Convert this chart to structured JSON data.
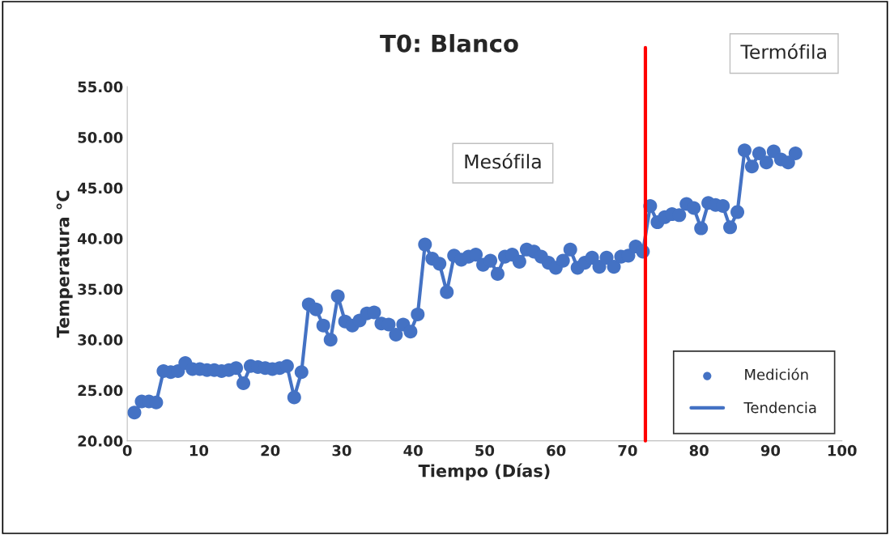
{
  "chart_data": {
    "type": "line",
    "title": "T0: Blanco",
    "xlabel": "Tiempo (Días)",
    "ylabel": "Temperatura °C",
    "x": [
      1,
      2.02,
      3.03,
      4.05,
      5.07,
      6.08,
      7.1,
      8.12,
      9.13,
      10.15,
      11.16,
      12.18,
      13.2,
      14.21,
      15.23,
      16.25,
      17.26,
      18.28,
      19.3,
      20.31,
      21.33,
      22.35,
      23.36,
      24.38,
      25.4,
      26.41,
      27.43,
      28.45,
      29.46,
      30.48,
      31.49,
      32.51,
      33.53,
      34.54,
      35.56,
      36.58,
      37.59,
      38.61,
      39.63,
      40.64,
      41.66,
      42.68,
      43.69,
      44.71,
      45.73,
      46.74,
      47.76,
      48.77,
      49.79,
      50.81,
      51.82,
      52.84,
      53.86,
      54.87,
      55.89,
      56.91,
      57.92,
      58.94,
      59.96,
      60.97,
      61.99,
      63.01,
      64.02,
      65.04,
      66.05,
      67.07,
      68.09,
      69.1,
      70.12,
      71.14,
      72.15,
      73.17,
      74.19,
      75.2,
      76.22,
      77.24,
      78.25,
      79.27,
      80.29,
      81.3,
      82.32,
      83.34,
      84.35,
      85.37,
      86.38,
      87.4,
      88.42,
      89.43,
      90.45,
      91.47,
      92.48,
      93.5
    ],
    "series": [
      {
        "name": "Medición",
        "type": "scatter",
        "color": "#4472c4",
        "marker": "circle",
        "values": [
          22.8,
          23.9,
          23.9,
          23.8,
          26.9,
          26.8,
          26.9,
          27.7,
          27.1,
          27.1,
          27.0,
          27.0,
          26.9,
          27.0,
          27.2,
          25.7,
          27.4,
          27.3,
          27.2,
          27.1,
          27.2,
          27.4,
          24.3,
          26.8,
          33.5,
          33.0,
          31.4,
          30.0,
          34.3,
          31.8,
          31.4,
          31.9,
          32.6,
          32.7,
          31.6,
          31.5,
          30.5,
          31.5,
          30.8,
          32.5,
          39.4,
          38.0,
          37.5,
          34.7,
          38.3,
          37.9,
          38.2,
          38.4,
          37.4,
          37.8,
          36.5,
          38.2,
          38.4,
          37.7,
          38.9,
          38.7,
          38.2,
          37.6,
          37.1,
          37.8,
          38.9,
          37.1,
          37.6,
          38.1,
          37.2,
          38.1,
          37.2,
          38.2,
          38.3,
          39.2,
          38.7,
          43.2,
          41.6,
          42.1,
          42.4,
          42.3,
          43.4,
          43.0,
          41.0,
          43.5,
          43.3,
          43.2,
          41.1,
          42.6,
          48.7,
          47.1,
          48.4,
          47.5,
          48.6,
          47.8,
          47.5,
          48.4
        ]
      },
      {
        "name": "Tendencia",
        "color": "#4472c4",
        "line_style": "solid",
        "values": [
          22.8,
          23.9,
          23.9,
          23.8,
          26.9,
          26.8,
          26.9,
          27.7,
          27.1,
          27.1,
          27.0,
          27.0,
          26.9,
          27.0,
          27.2,
          25.7,
          27.4,
          27.3,
          27.2,
          27.1,
          27.2,
          27.4,
          24.3,
          26.8,
          33.5,
          33.0,
          31.4,
          30.0,
          34.3,
          31.8,
          31.4,
          31.9,
          32.6,
          32.7,
          31.6,
          31.5,
          30.5,
          31.5,
          30.8,
          32.5,
          39.4,
          38.0,
          37.5,
          34.7,
          38.3,
          37.9,
          38.2,
          38.4,
          37.4,
          37.8,
          36.5,
          38.2,
          38.4,
          37.7,
          38.9,
          38.7,
          38.2,
          37.6,
          37.1,
          37.8,
          38.9,
          37.1,
          37.6,
          38.1,
          37.2,
          38.1,
          37.2,
          38.2,
          38.3,
          39.2,
          38.7,
          43.2,
          41.6,
          42.1,
          42.4,
          42.3,
          43.4,
          43.0,
          41.0,
          43.5,
          43.3,
          43.2,
          41.1,
          42.6,
          48.7,
          47.1,
          48.4,
          47.5,
          48.6,
          47.8,
          47.5,
          48.4
        ]
      }
    ],
    "xlim": [
      0,
      100
    ],
    "xticks": [
      0,
      10,
      20,
      30,
      40,
      50,
      60,
      70,
      80,
      90,
      100
    ],
    "ylim": [
      20,
      55
    ],
    "yticks": [
      {
        "value": 20,
        "label": "20.00"
      },
      {
        "value": 25,
        "label": "25.00"
      },
      {
        "value": 30,
        "label": "30.00"
      },
      {
        "value": 35,
        "label": "35.00"
      },
      {
        "value": 40,
        "label": "40.00"
      },
      {
        "value": 45,
        "label": "45.00"
      },
      {
        "value": 50,
        "label": "50.00"
      },
      {
        "value": 55,
        "label": "55.00"
      }
    ],
    "ref_lines": [
      {
        "axis": "x",
        "value": 72.5,
        "color": "#ff0000"
      }
    ],
    "annotations": [
      "Mesófila",
      "Termófila"
    ],
    "grid": false,
    "legend": "bottom right"
  }
}
